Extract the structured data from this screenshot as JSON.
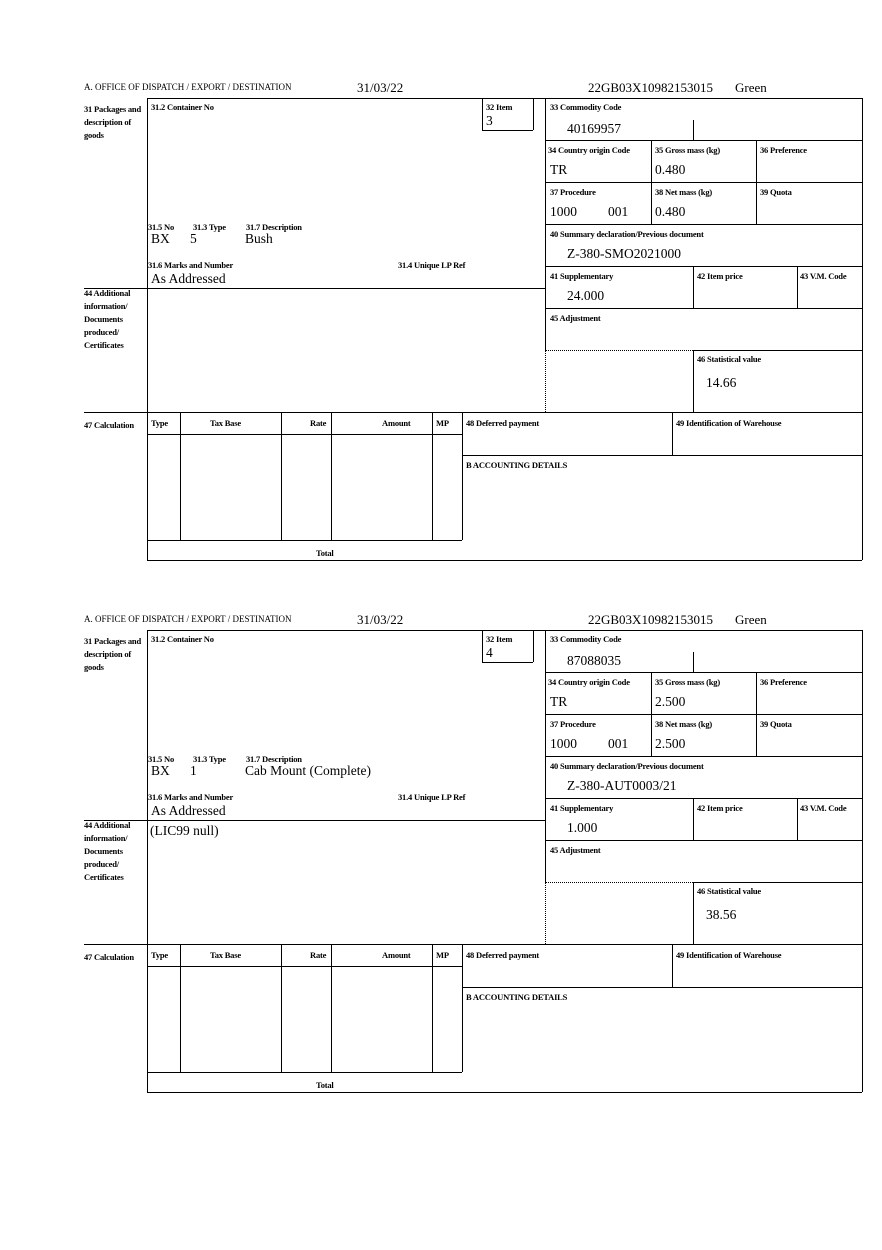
{
  "forms": [
    {
      "header": {
        "office": "A. OFFICE OF DISPATCH / EXPORT / DESTINATION",
        "date": "31/03/22",
        "reference": "22GB03X10982153015",
        "status": "Green"
      },
      "labels": {
        "packages": "31 Packages and description of goods",
        "container": "31.2 Container No",
        "item": "32 Item",
        "commodity": "33 Commodity Code",
        "country": "34 Country origin Code",
        "gross": "35 Gross mass (kg)",
        "preference": "36 Preference",
        "procedure": "37 Procedure",
        "net": "38 Net mass (kg)",
        "quota": "39 Quota",
        "summary": "40 Summary declaration/Previous document",
        "supplementary": "41 Supplementary",
        "item_price": "42 Item price",
        "vm_code": "43 V.M. Code",
        "adjustment": "45 Adjustment",
        "statistical": "46 Statistical value",
        "no": "31.5 No",
        "type": "31.3 Type",
        "description": "31.7 Description",
        "marks": "31.6 Marks and Number",
        "unique_ref": "31.4 Unique LP Ref",
        "additional": "44 Additional information/ Documents produced/ Certificates",
        "calculation": "47 Calculation",
        "calc_type": "Type",
        "tax_base": "Tax Base",
        "rate": "Rate",
        "amount": "Amount",
        "mp": "MP",
        "deferred": "48 Deferred payment",
        "warehouse": "49 Identification of Warehouse",
        "accounting": "B ACCOUNTING DETAILS",
        "total": "Total"
      },
      "values": {
        "item": "3",
        "commodity": "40169957",
        "country": "TR",
        "gross": "0.480",
        "procedure": "1000",
        "procedure_code": "001",
        "net": "0.480",
        "summary": "Z-380-SMO2021000",
        "supplementary": "24.000",
        "statistical": "14.66",
        "package_kind": "BX",
        "package_count": "5",
        "description": "Bush",
        "marks": "As Addressed",
        "additional": ""
      }
    },
    {
      "header": {
        "office": "A. OFFICE OF DISPATCH / EXPORT / DESTINATION",
        "date": "31/03/22",
        "reference": "22GB03X10982153015",
        "status": "Green"
      },
      "labels": {
        "packages": "31 Packages and description of goods",
        "container": "31.2 Container No",
        "item": "32 Item",
        "commodity": "33 Commodity Code",
        "country": "34 Country origin Code",
        "gross": "35 Gross mass (kg)",
        "preference": "36 Preference",
        "procedure": "37 Procedure",
        "net": "38 Net mass (kg)",
        "quota": "39 Quota",
        "summary": "40 Summary declaration/Previous document",
        "supplementary": "41 Supplementary",
        "item_price": "42 Item price",
        "vm_code": "43 V.M. Code",
        "adjustment": "45 Adjustment",
        "statistical": "46 Statistical value",
        "no": "31.5 No",
        "type": "31.3 Type",
        "description": "31.7 Description",
        "marks": "31.6 Marks and Number",
        "unique_ref": "31.4 Unique LP Ref",
        "additional": "44 Additional information/ Documents produced/ Certificates",
        "calculation": "47 Calculation",
        "calc_type": "Type",
        "tax_base": "Tax Base",
        "rate": "Rate",
        "amount": "Amount",
        "mp": "MP",
        "deferred": "48 Deferred payment",
        "warehouse": "49 Identification of Warehouse",
        "accounting": "B ACCOUNTING DETAILS",
        "total": "Total"
      },
      "values": {
        "item": "4",
        "commodity": "87088035",
        "country": "TR",
        "gross": "2.500",
        "procedure": "1000",
        "procedure_code": "001",
        "net": "2.500",
        "summary": "Z-380-AUT0003/21",
        "supplementary": "1.000",
        "statistical": "38.56",
        "package_kind": "BX",
        "package_count": "1",
        "description": "Cab Mount (Complete)",
        "marks": "As Addressed",
        "additional": "(LIC99 null)"
      }
    }
  ]
}
